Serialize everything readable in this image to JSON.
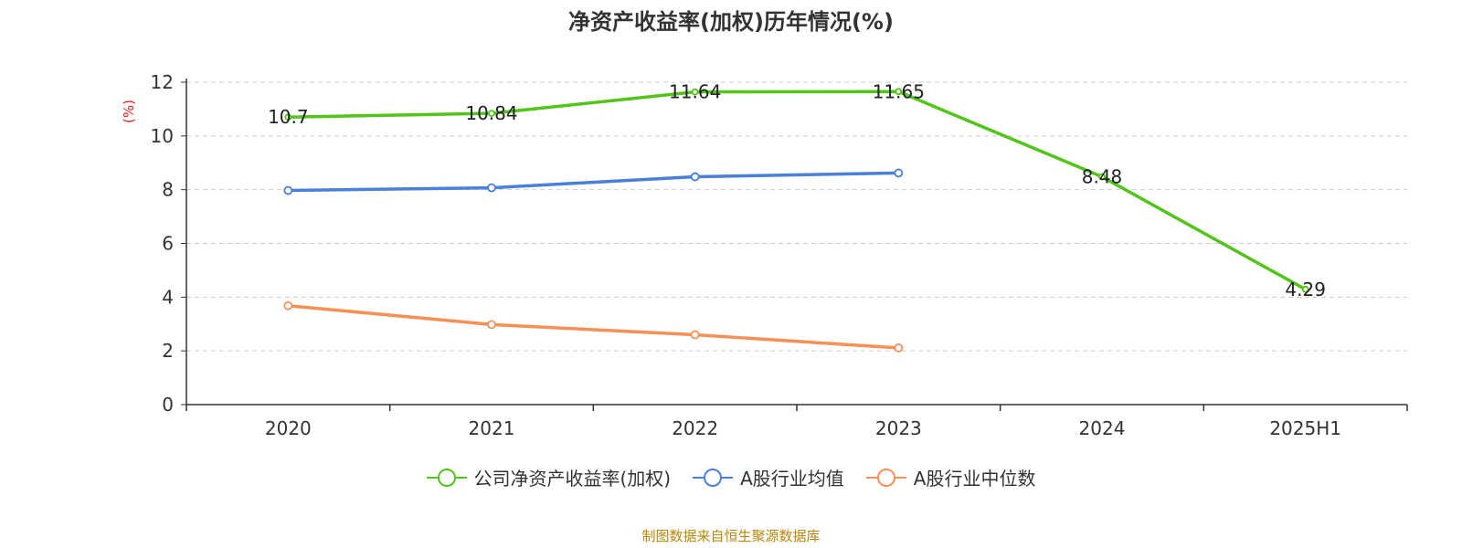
{
  "chart_data": {
    "type": "line",
    "title": "净资产收益率(加权)历年情况(%)",
    "ylabel": "(%)",
    "xlabel": "",
    "categories": [
      "2020",
      "2021",
      "2022",
      "2023",
      "2024",
      "2025H1"
    ],
    "ylim": [
      0,
      12
    ],
    "yticks": [
      0,
      2,
      4,
      6,
      8,
      10,
      12
    ],
    "grid": true,
    "legend_position": "bottom",
    "series": [
      {
        "name": "公司净资产收益率(加权)",
        "color": "#52c41a",
        "values": [
          10.7,
          10.84,
          11.64,
          11.65,
          8.48,
          4.29
        ],
        "labels": [
          "10.7",
          "10.84",
          "11.64",
          "11.65",
          "8.48",
          "4.29"
        ]
      },
      {
        "name": "A股行业均值",
        "color": "#4a7fdc",
        "values": [
          7.97,
          8.07,
          8.48,
          8.62,
          null,
          null
        ]
      },
      {
        "name": "A股行业中位数",
        "color": "#f79056",
        "values": [
          3.68,
          2.98,
          2.6,
          2.11,
          null,
          null
        ]
      }
    ]
  },
  "footer": {
    "source": "制图数据来自恒生聚源数据库"
  },
  "colors": {
    "ylabel": "#e02020",
    "source": "#b8860b"
  }
}
